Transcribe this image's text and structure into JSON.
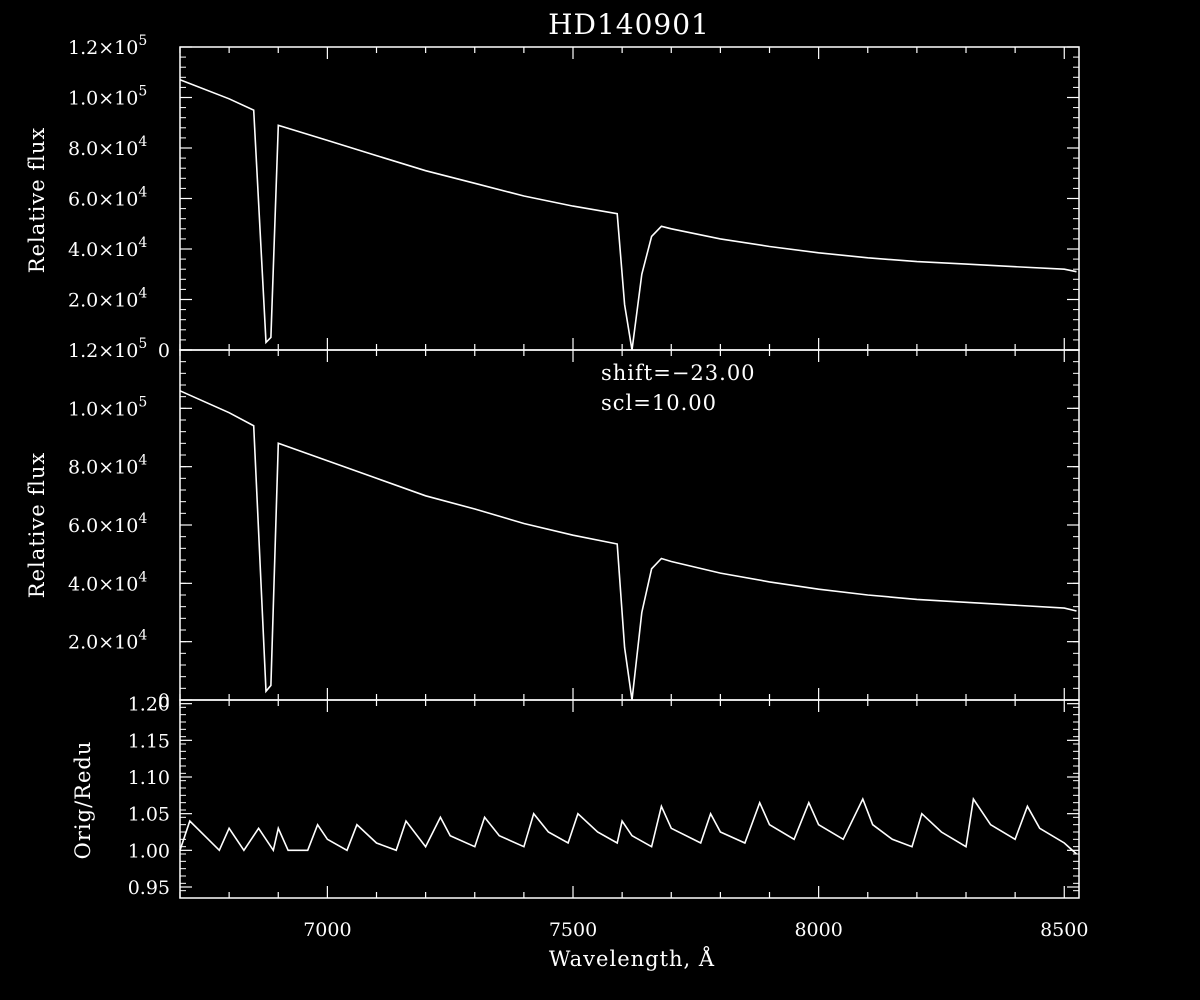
{
  "chart_data": [
    {
      "type": "line",
      "panel": "top",
      "title": "HD140901",
      "ylabel": "Relative flux",
      "xlim": [
        6700,
        8530
      ],
      "ylim": [
        0,
        120000
      ],
      "yticks": [
        {
          "value": 0,
          "mant": "0",
          "exp": ""
        },
        {
          "value": 20000,
          "mant": "2.0×10",
          "exp": "4"
        },
        {
          "value": 40000,
          "mant": "4.0×10",
          "exp": "4"
        },
        {
          "value": 60000,
          "mant": "6.0×10",
          "exp": "4"
        },
        {
          "value": 80000,
          "mant": "8.0×10",
          "exp": "4"
        },
        {
          "value": 100000,
          "mant": "1.0×10",
          "exp": "5"
        },
        {
          "value": 120000,
          "mant": "1.2×10",
          "exp": "5"
        }
      ],
      "x": [
        6700,
        6800,
        6850,
        6875,
        6885,
        6900,
        7000,
        7100,
        7200,
        7300,
        7400,
        7500,
        7590,
        7605,
        7620,
        7640,
        7660,
        7680,
        7700,
        7800,
        7900,
        8000,
        8100,
        8200,
        8300,
        8400,
        8500,
        8525
      ],
      "y": [
        107000,
        99500,
        95000,
        3000,
        5000,
        89000,
        83000,
        77000,
        71000,
        66000,
        61000,
        57000,
        54000,
        18000,
        0,
        30000,
        45000,
        49000,
        48000,
        44000,
        41000,
        38500,
        36500,
        35000,
        34000,
        33000,
        32000,
        31000
      ]
    },
    {
      "type": "line",
      "panel": "middle",
      "ylabel": "Relative flux",
      "xlim": [
        6700,
        8530
      ],
      "ylim": [
        0,
        120000
      ],
      "annotations": [
        "shift=−23.00",
        "scl=10.00"
      ],
      "yticks": [
        {
          "value": 0,
          "mant": "0",
          "exp": ""
        },
        {
          "value": 20000,
          "mant": "2.0×10",
          "exp": "4"
        },
        {
          "value": 40000,
          "mant": "4.0×10",
          "exp": "4"
        },
        {
          "value": 60000,
          "mant": "6.0×10",
          "exp": "4"
        },
        {
          "value": 80000,
          "mant": "8.0×10",
          "exp": "4"
        },
        {
          "value": 100000,
          "mant": "1.0×10",
          "exp": "5"
        },
        {
          "value": 120000,
          "mant": "1.2×10",
          "exp": "5"
        }
      ],
      "x": [
        6700,
        6800,
        6850,
        6875,
        6885,
        6900,
        7000,
        7100,
        7200,
        7300,
        7400,
        7500,
        7590,
        7605,
        7620,
        7640,
        7660,
        7680,
        7700,
        7800,
        7900,
        8000,
        8100,
        8200,
        8300,
        8400,
        8500,
        8525
      ],
      "y": [
        106000,
        98500,
        94000,
        3000,
        5000,
        88000,
        82000,
        76000,
        70000,
        65500,
        60500,
        56500,
        53500,
        18000,
        0,
        30000,
        45000,
        48500,
        47500,
        43500,
        40500,
        38000,
        36000,
        34500,
        33500,
        32500,
        31500,
        30500
      ]
    },
    {
      "type": "line",
      "panel": "bottom",
      "ylabel": "Orig/Redu",
      "xlabel": "Wavelength, Å",
      "xlim": [
        6700,
        8530
      ],
      "ylim": [
        0.935,
        1.205
      ],
      "yticks": [
        {
          "value": 0.95,
          "mant": "0.95",
          "exp": ""
        },
        {
          "value": 1.0,
          "mant": "1.00",
          "exp": ""
        },
        {
          "value": 1.05,
          "mant": "1.05",
          "exp": ""
        },
        {
          "value": 1.1,
          "mant": "1.10",
          "exp": ""
        },
        {
          "value": 1.15,
          "mant": "1.15",
          "exp": ""
        },
        {
          "value": 1.2,
          "mant": "1.20",
          "exp": ""
        }
      ],
      "xticks": [
        7000,
        7500,
        8000,
        8500
      ],
      "x": [
        6700,
        6720,
        6750,
        6780,
        6800,
        6830,
        6860,
        6890,
        6900,
        6920,
        6960,
        6980,
        7000,
        7040,
        7060,
        7100,
        7140,
        7160,
        7200,
        7230,
        7250,
        7300,
        7320,
        7350,
        7400,
        7420,
        7450,
        7490,
        7510,
        7550,
        7590,
        7600,
        7620,
        7660,
        7680,
        7700,
        7760,
        7780,
        7800,
        7850,
        7880,
        7900,
        7950,
        7980,
        8000,
        8050,
        8090,
        8110,
        8150,
        8190,
        8210,
        8250,
        8300,
        8315,
        8350,
        8400,
        8425,
        8450,
        8500,
        8525
      ],
      "y": [
        1.0,
        1.04,
        1.02,
        1.0,
        1.03,
        1.0,
        1.03,
        1.0,
        1.03,
        1.0,
        1.0,
        1.035,
        1.015,
        1.0,
        1.035,
        1.01,
        1.0,
        1.04,
        1.005,
        1.045,
        1.02,
        1.005,
        1.045,
        1.02,
        1.005,
        1.05,
        1.025,
        1.01,
        1.05,
        1.025,
        1.01,
        1.04,
        1.02,
        1.005,
        1.06,
        1.03,
        1.01,
        1.05,
        1.025,
        1.01,
        1.065,
        1.035,
        1.015,
        1.065,
        1.035,
        1.015,
        1.07,
        1.035,
        1.015,
        1.005,
        1.05,
        1.025,
        1.005,
        1.07,
        1.035,
        1.015,
        1.06,
        1.03,
        1.01,
        0.995
      ]
    }
  ]
}
